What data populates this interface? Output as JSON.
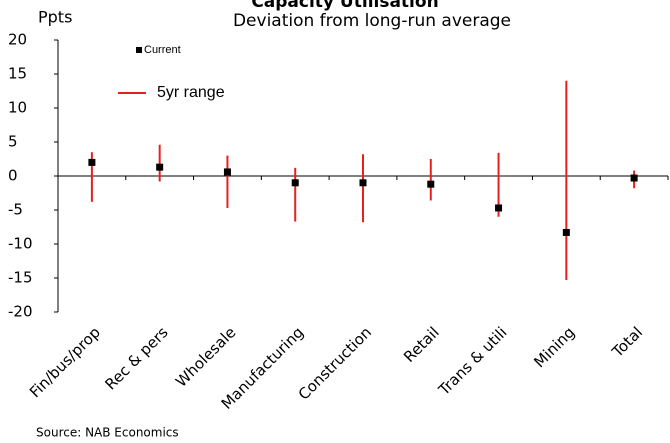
{
  "chart_data": {
    "type": "range",
    "title": "Capacity Utilisation",
    "subtitle": "Deviation from long-run average",
    "y_label": "Ppts",
    "source": "Source: NAB Economics",
    "categories": [
      "Fin/bus/prop",
      "Rec & pers",
      "Wholesale",
      "Manufacturing",
      "Construction",
      "Retail",
      "Trans & utili",
      "Mining",
      "Total"
    ],
    "series": [
      {
        "name": "Current",
        "color": "#000000",
        "values": [
          2,
          1.3,
          0.6,
          -1,
          -1,
          -1.2,
          -4.7,
          -8.3,
          -0.3
        ]
      },
      {
        "name": "5yr range",
        "color": "#e8201c",
        "low": [
          -3.8,
          -0.8,
          -4.7,
          -6.7,
          -6.8,
          -3.6,
          -6.0,
          -15.3,
          -1.8
        ],
        "high": [
          3.5,
          4.6,
          3.0,
          1.2,
          3.2,
          2.5,
          3.4,
          14,
          0.8
        ]
      }
    ],
    "ylim": [
      -20,
      20
    ],
    "yticks": [
      -20,
      -15,
      -10,
      -5,
      0,
      5,
      10,
      15,
      20
    ],
    "grid": false
  }
}
